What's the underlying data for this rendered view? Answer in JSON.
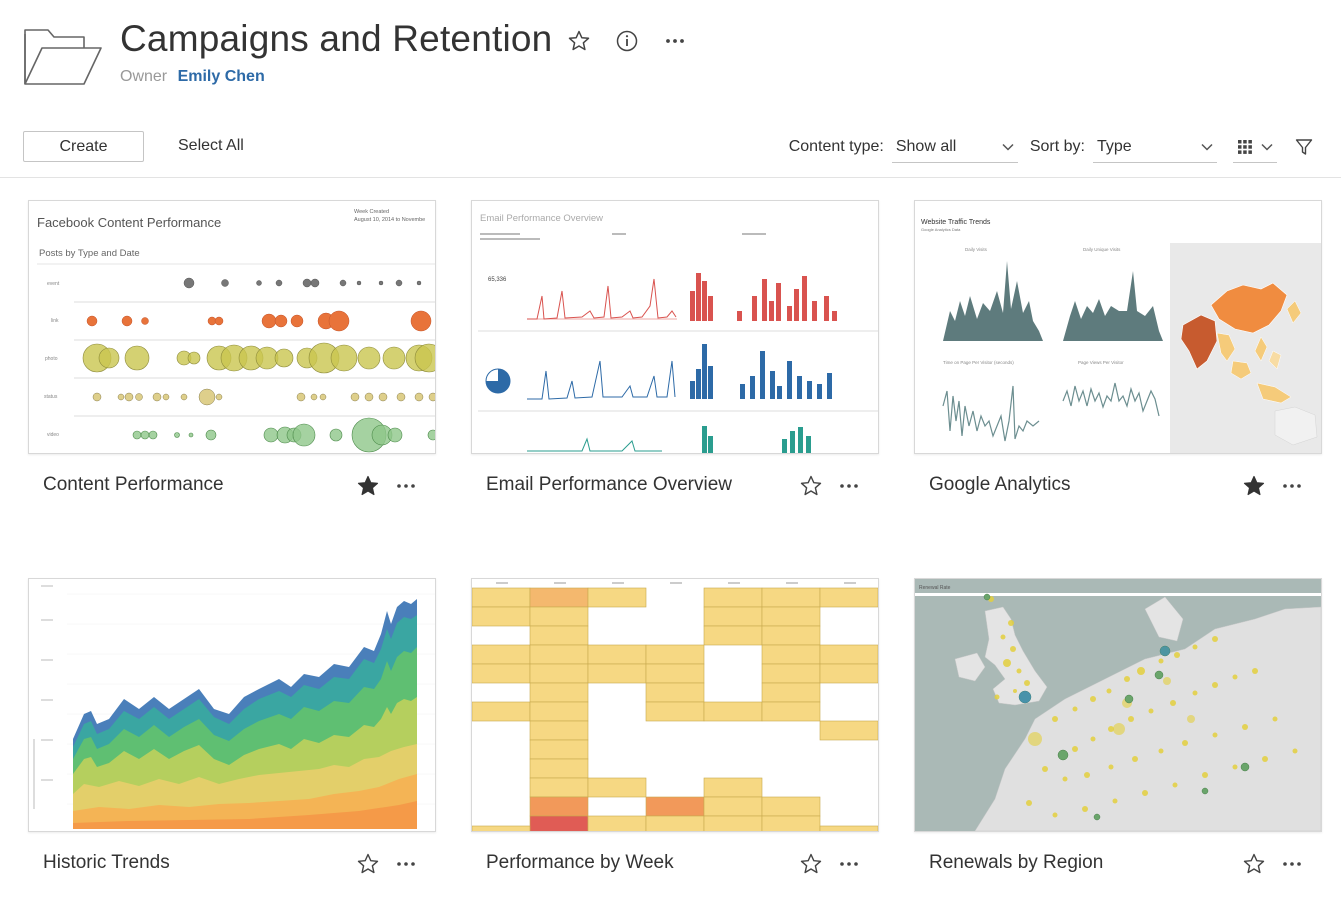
{
  "header": {
    "title": "Campaigns and Retention",
    "owner_label": "Owner",
    "owner_name": "Emily Chen"
  },
  "toolbar": {
    "create_label": "Create",
    "select_all_label": "Select All",
    "content_type_label": "Content type:",
    "content_type_value": "Show all",
    "sort_by_label": "Sort by:",
    "sort_by_value": "Type"
  },
  "icons": {
    "folder": "folder-icon",
    "favorite": "star-icon",
    "info": "info-icon",
    "more": "more-icon",
    "grid_view": "grid-view-icon",
    "filter": "filter-icon"
  },
  "colors": {
    "link": "#2d6aa7",
    "text": "#333333",
    "star_filled": "#333333"
  },
  "cards": [
    {
      "title": "Content Performance",
      "favorited": true,
      "thumb": {
        "title": "Facebook Content Performance",
        "subtitle": "Posts by Type and Date",
        "note_line1": "Week Created",
        "note_line2": "August 10, 2014 to Novembe",
        "row_labels": [
          "event",
          "link",
          "photo",
          "status",
          "video"
        ]
      }
    },
    {
      "title": "Email Performance Overview",
      "favorited": false,
      "thumb": {
        "title": "Email Performance Overview",
        "kpi": "65,336"
      }
    },
    {
      "title": "Google Analytics",
      "favorited": true,
      "thumb": {
        "title": "Website Traffic Trends",
        "subtitle": "Google Analytics Data",
        "panel1": "Daily Visits",
        "panel2": "Daily Unique Visits",
        "panel3": "Time on Page Per Visitor (seconds)",
        "panel4": "Page Views Per Visitor"
      }
    },
    {
      "title": "Historic Trends",
      "favorited": false,
      "thumb": {}
    },
    {
      "title": "Performance by Week",
      "favorited": false,
      "thumb": {}
    },
    {
      "title": "Renewals by Region",
      "favorited": false,
      "thumb": {
        "title": "Renewal Rate"
      }
    }
  ]
}
